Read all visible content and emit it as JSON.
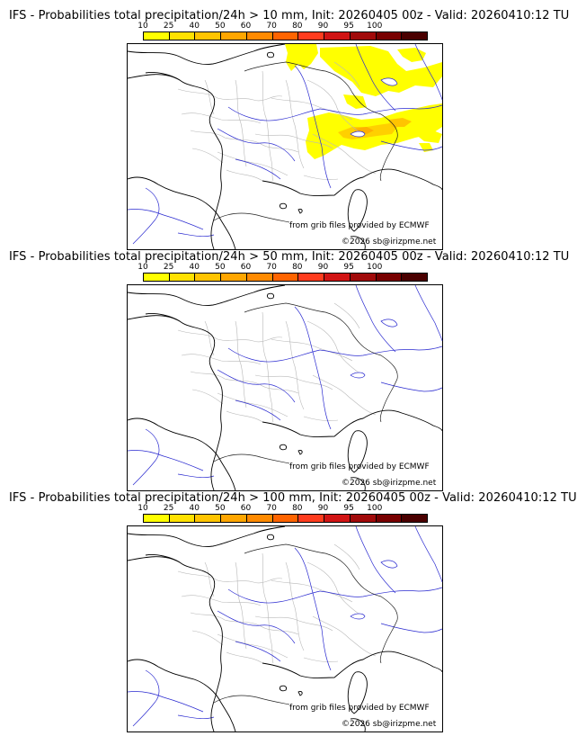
{
  "colorbar": {
    "ticks": [
      "10",
      "25",
      "40",
      "50",
      "60",
      "70",
      "80",
      "90",
      "95",
      "100"
    ],
    "colors": [
      "#ffff00",
      "#ffe100",
      "#ffc400",
      "#ffa600",
      "#ff8a00",
      "#ff6400",
      "#ff3c1e",
      "#d11414",
      "#a10a0a",
      "#780000",
      "#4a0000"
    ]
  },
  "credits": {
    "source": "from grib files provided by ECMWF",
    "copyright": "©2026 sb@irizpme.net"
  },
  "panels": [
    {
      "title": "IFS - Probabilities total precipitation/24h > 10 mm, Init: 20260405 00z - Valid: 20260410:12 TU",
      "has_precip": true
    },
    {
      "title": "IFS - Probabilities total precipitation/24h > 50 mm, Init: 20260405 00z - Valid: 20260410:12 TU",
      "has_precip": false
    },
    {
      "title": "IFS - Probabilities total precipitation/24h > 100 mm, Init: 20260405 00z - Valid: 20260410:12 TU",
      "has_precip": false
    }
  ]
}
